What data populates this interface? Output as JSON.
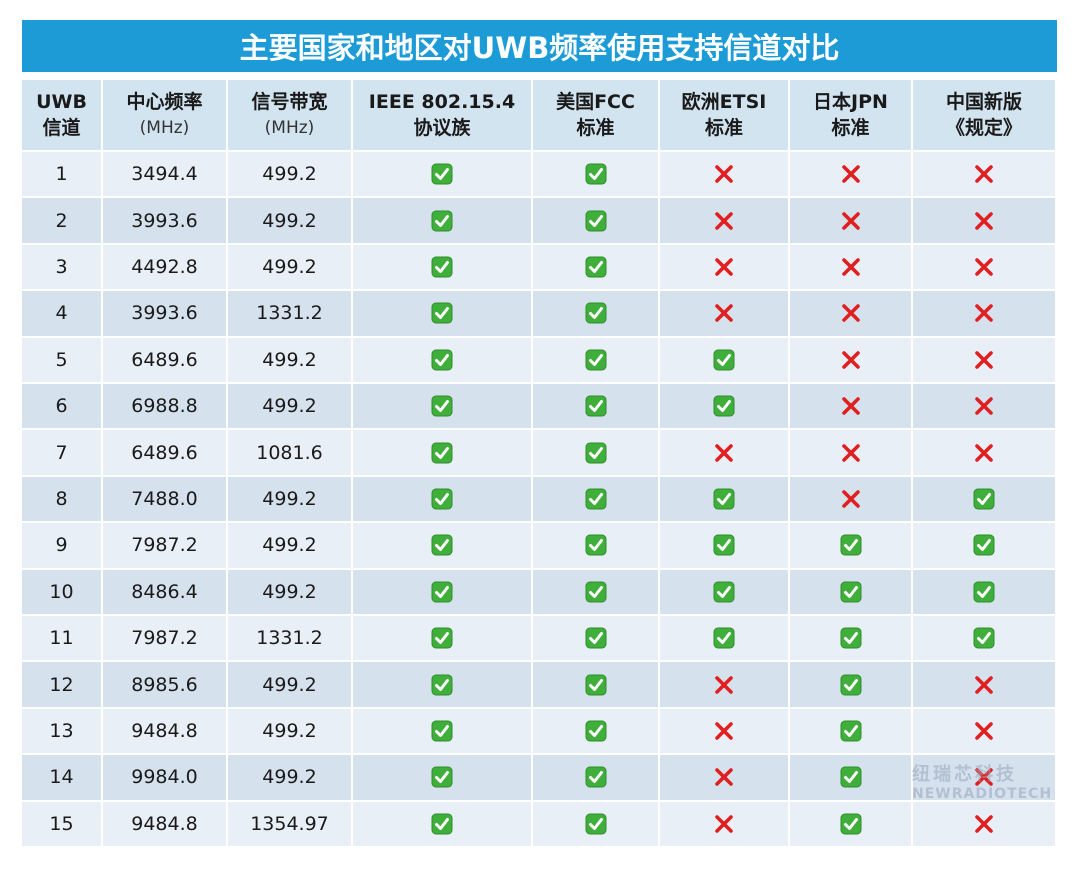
{
  "title": "主要国家和地区对UWB频率使用支持信道对比",
  "table": {
    "header": [
      [
        "UWB",
        "信道"
      ],
      [
        "中心频率",
        "(MHz)"
      ],
      [
        "信号带宽",
        "(MHz)"
      ],
      [
        "IEEE 802.15.4",
        "协议族"
      ],
      [
        "美国FCC",
        "标准"
      ],
      [
        "欧洲ETSI",
        "标准"
      ],
      [
        "日本JPN",
        "标准"
      ],
      [
        "中国新版",
        "《规定》"
      ]
    ],
    "rows": [
      [
        "1",
        "3494.4",
        "499.2",
        true,
        true,
        false,
        false,
        false
      ],
      [
        "2",
        "3993.6",
        "499.2",
        true,
        true,
        false,
        false,
        false
      ],
      [
        "3",
        "4492.8",
        "499.2",
        true,
        true,
        false,
        false,
        false
      ],
      [
        "4",
        "3993.6",
        "1331.2",
        true,
        true,
        false,
        false,
        false
      ],
      [
        "5",
        "6489.6",
        "499.2",
        true,
        true,
        true,
        false,
        false
      ],
      [
        "6",
        "6988.8",
        "499.2",
        true,
        true,
        true,
        false,
        false
      ],
      [
        "7",
        "6489.6",
        "1081.6",
        true,
        true,
        false,
        false,
        false
      ],
      [
        "8",
        "7488.0",
        "499.2",
        true,
        true,
        true,
        false,
        true
      ],
      [
        "9",
        "7987.2",
        "499.2",
        true,
        true,
        true,
        true,
        true
      ],
      [
        "10",
        "8486.4",
        "499.2",
        true,
        true,
        true,
        true,
        true
      ],
      [
        "11",
        "7987.2",
        "1331.2",
        true,
        true,
        true,
        true,
        true
      ],
      [
        "12",
        "8985.6",
        "499.2",
        true,
        true,
        false,
        true,
        false
      ],
      [
        "13",
        "9484.8",
        "499.2",
        true,
        true,
        false,
        true,
        false
      ],
      [
        "14",
        "9984.0",
        "499.2",
        true,
        true,
        false,
        true,
        false
      ],
      [
        "15",
        "9484.8",
        "1354.97",
        true,
        true,
        false,
        true,
        false
      ]
    ]
  },
  "watermark": [
    "纽瑞芯科技",
    "NEWRADIOTECH"
  ]
}
